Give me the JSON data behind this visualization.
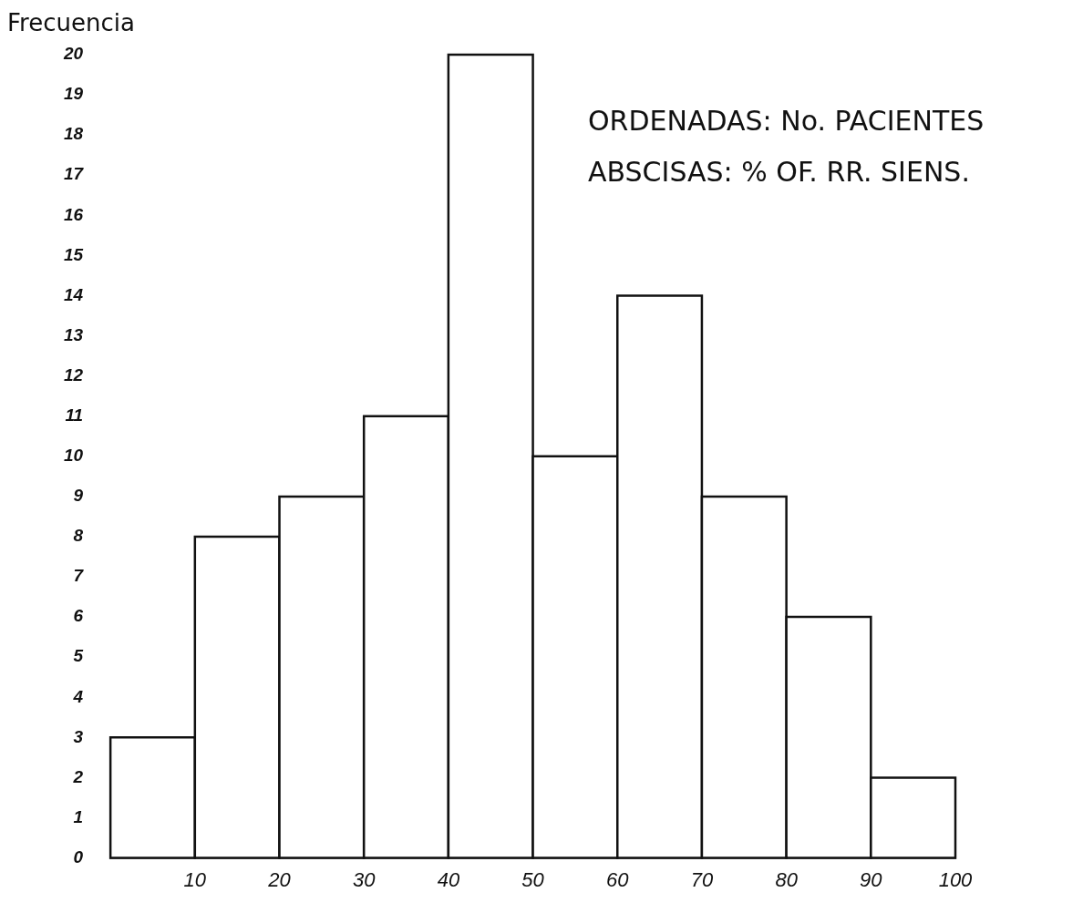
{
  "chart_data": {
    "type": "histogram",
    "ylabel": "Frecuencia",
    "annotations": [
      "ORDENADAS: No. PACIENTES",
      "ABSCISAS: % OF. RR. SIENS."
    ],
    "bins": [
      0,
      10,
      20,
      30,
      40,
      50,
      60,
      70,
      80,
      90,
      100
    ],
    "values": [
      3,
      8,
      9,
      11,
      20,
      10,
      14,
      9,
      6,
      2
    ],
    "color": "#ffffff",
    "xlim": [
      0,
      100
    ],
    "xticks": [
      10,
      20,
      30,
      40,
      50,
      60,
      70,
      80,
      90,
      100
    ],
    "ylim": [
      0,
      20
    ],
    "yticks": [
      0,
      1,
      2,
      3,
      4,
      5,
      6,
      7,
      8,
      9,
      10,
      11,
      12,
      13,
      14,
      15,
      16,
      17,
      18,
      19,
      20
    ],
    "grid": false,
    "legend": false
  }
}
